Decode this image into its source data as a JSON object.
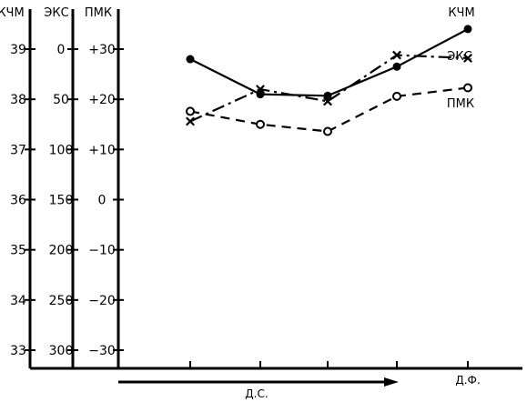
{
  "chart_data": {
    "type": "line",
    "axes": [
      {
        "title": "КЧМ",
        "ticks": [
          "33",
          "34",
          "35",
          "36",
          "37",
          "38",
          "39"
        ],
        "range": [
          33,
          39
        ]
      },
      {
        "title": "ЭКС",
        "ticks": [
          "300",
          "250",
          "200",
          "150",
          "100",
          "50",
          "0"
        ],
        "range": [
          300,
          0
        ]
      },
      {
        "title": "ПМК",
        "ticks": [
          "−30",
          "−20",
          "−10",
          "0",
          "+10",
          "+20",
          "+30"
        ],
        "range": [
          -30,
          30
        ]
      }
    ],
    "x_tick_labels": [
      "",
      "",
      "",
      "",
      "Д.Ф."
    ],
    "arrow_label": "Д.С.",
    "series": [
      {
        "name": "КЧМ",
        "axis": 0,
        "marker": "filled-circle",
        "dash": "solid",
        "values": [
          38.8,
          38.1,
          38.07,
          38.65,
          39.4
        ]
      },
      {
        "name": "ЭКС",
        "axis": 1,
        "marker": "x",
        "dash": "dash-dot",
        "values": [
          72,
          40,
          52,
          6,
          9
        ]
      },
      {
        "name": "ПМК",
        "axis": 2,
        "marker": "open-circle",
        "dash": "dashed",
        "values": [
          17.6,
          15,
          13.6,
          20.6,
          22.3
        ]
      }
    ]
  }
}
